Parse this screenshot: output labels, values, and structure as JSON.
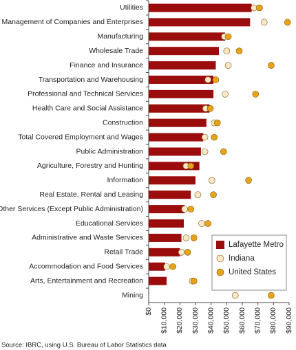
{
  "chart_data": {
    "type": "bar",
    "orientation": "horizontal",
    "categories": [
      "Utilities",
      "Management of Companies and Enterprises",
      "Manufacturing",
      "Wholesale Trade",
      "Finance and Insurance",
      "Transportation and Warehousing",
      "Professional and Technical Services",
      "Health Care and Social Assistance",
      "Construction",
      "Total Covered Employment and Wages",
      "Public Administration",
      "Agriculture, Forestry and Hunting",
      "Information",
      "Real Estate, Rental and Leasing",
      "Other Services (Except Public Administration)",
      "Educational Services",
      "Administrative and Waste Services",
      "Retail Trade",
      "Accommodation and Food Services",
      "Arts, Entertainment and Recreation",
      "Mining"
    ],
    "series": [
      {
        "name": "Lafayette Metro",
        "color": "#9b0d0d",
        "style": "bar",
        "values": [
          66000,
          65000,
          49000,
          45000,
          43000,
          41500,
          41500,
          39000,
          37000,
          35000,
          33500,
          32500,
          30000,
          27000,
          23000,
          22500,
          21000,
          20000,
          10500,
          11500,
          null
        ]
      },
      {
        "name": "Indiana",
        "color": "#fbe8c8",
        "style": "dot",
        "values": [
          67500,
          74000,
          48500,
          50000,
          51000,
          38000,
          49000,
          36500,
          42000,
          36000,
          36000,
          24000,
          40500,
          31500,
          23000,
          34000,
          24000,
          21000,
          11500,
          28000,
          55500
        ]
      },
      {
        "name": "United States",
        "color": "#e8a317",
        "style": "dot",
        "values": [
          71000,
          89000,
          51000,
          58000,
          78500,
          43000,
          68500,
          39500,
          44000,
          42000,
          48000,
          27000,
          64000,
          41500,
          27000,
          38000,
          29000,
          25000,
          15500,
          29000,
          78500
        ]
      }
    ],
    "xlim": [
      0,
      90000
    ],
    "xticks": [
      {
        "value": 0,
        "label": "$0"
      },
      {
        "value": 10000,
        "label": "$10,000"
      },
      {
        "value": 20000,
        "label": "$20,000"
      },
      {
        "value": 30000,
        "label": "$30,000"
      },
      {
        "value": 40000,
        "label": "$40,000"
      },
      {
        "value": 50000,
        "label": "$50,000"
      },
      {
        "value": 60000,
        "label": "$60,000"
      },
      {
        "value": 70000,
        "label": "$70,000"
      },
      {
        "value": 80000,
        "label": "$80,000"
      },
      {
        "value": 90000,
        "label": "$90,000"
      }
    ],
    "grid": false,
    "legend": "lower right",
    "source": "Source: IBRC, using U.S. Bureau of Labor Statistics data"
  }
}
